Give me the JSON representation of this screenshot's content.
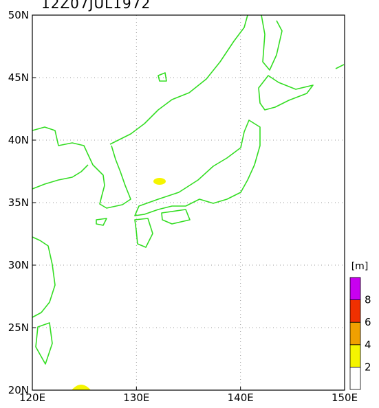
{
  "title": "12Z07JUL1972",
  "x_axis": {
    "labels": [
      "120E",
      "130E",
      "140E",
      "150E"
    ]
  },
  "y_axis": {
    "labels": [
      "20N",
      "25N",
      "30N",
      "35N",
      "40N",
      "45N",
      "50N"
    ]
  },
  "colorbar": {
    "unit": "[m]",
    "labels": [
      "2",
      "4",
      "6",
      "8"
    ],
    "colors": [
      "#ffffff",
      "#f5f500",
      "#f0a000",
      "#f03000",
      "#c800f0"
    ]
  }
}
